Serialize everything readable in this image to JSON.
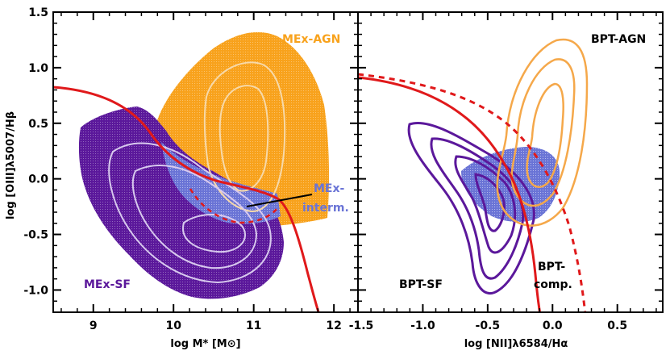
{
  "chart_data": [
    {
      "type": "scatter",
      "xlabel": "log M* [M⊙]",
      "ylabel": "log [OIII]λ5007/Hβ",
      "xlim": [
        8.5,
        12.3
      ],
      "ylim": [
        -1.2,
        1.5
      ],
      "x_ticks": [
        "9",
        "10",
        "11",
        "12"
      ],
      "y_ticks": [
        "-1.0",
        "-0.5",
        "0.0",
        "0.5",
        "1.0",
        "1.5"
      ],
      "annotations": [
        {
          "text": "MEx-AGN",
          "x": 11.45,
          "y": 1.3,
          "color": "#f8a21c"
        },
        {
          "text": "MEx-",
          "x": 11.75,
          "y": -0.17,
          "color": "#6a74d6"
        },
        {
          "text": "interm.",
          "x": 11.75,
          "y": -0.34,
          "color": "#6a74d6"
        },
        {
          "text": "MEx-SF",
          "x": 8.95,
          "y": -1.0,
          "color": "#5b189b"
        }
      ],
      "series": [
        {
          "name": "MEx-AGN",
          "color": "#f8a21c",
          "points": [
            [
              10.3,
              1.1
            ],
            [
              10.5,
              1.2
            ],
            [
              10.7,
              1.15
            ],
            [
              10.9,
              1.25
            ],
            [
              11.1,
              1.0
            ],
            [
              10.4,
              0.8
            ],
            [
              10.6,
              0.6
            ],
            [
              10.9,
              0.7
            ],
            [
              11.1,
              0.5
            ],
            [
              10.3,
              0.3
            ],
            [
              10.5,
              0.2
            ],
            [
              10.8,
              0.3
            ],
            [
              11.0,
              0.0
            ],
            [
              11.2,
              -0.1
            ],
            [
              10.6,
              -0.05
            ],
            [
              10.4,
              0.45
            ],
            [
              11.3,
              0.6
            ],
            [
              11.25,
              0.2
            ],
            [
              10.2,
              0.55
            ],
            [
              10.7,
              0.9
            ]
          ]
        },
        {
          "name": "MEx-interm.",
          "color": "#6a74d6",
          "points": [
            [
              10.1,
              -0.05
            ],
            [
              10.3,
              -0.1
            ],
            [
              10.5,
              -0.15
            ],
            [
              10.7,
              -0.2
            ],
            [
              10.9,
              -0.25
            ],
            [
              11.0,
              -0.3
            ],
            [
              10.4,
              -0.25
            ],
            [
              10.8,
              -0.35
            ],
            [
              11.1,
              -0.2
            ],
            [
              10.6,
              -0.3
            ]
          ]
        },
        {
          "name": "MEx-SF",
          "color": "#5b189b",
          "points": [
            [
              9.2,
              0.3
            ],
            [
              9.5,
              0.1
            ],
            [
              9.7,
              -0.1
            ],
            [
              9.9,
              -0.3
            ],
            [
              10.1,
              -0.5
            ],
            [
              10.3,
              -0.6
            ],
            [
              10.5,
              -0.5
            ],
            [
              10.7,
              -0.7
            ],
            [
              10.9,
              -0.55
            ],
            [
              11.1,
              -0.5
            ],
            [
              9.6,
              0.45
            ],
            [
              9.8,
              0.3
            ],
            [
              10.0,
              0.2
            ],
            [
              10.2,
              -0.8
            ],
            [
              10.4,
              -0.9
            ],
            [
              10.0,
              -0.7
            ],
            [
              9.4,
              -0.2
            ],
            [
              9.1,
              0.15
            ],
            [
              11.2,
              -0.7
            ],
            [
              10.8,
              -0.95
            ]
          ]
        }
      ],
      "demarcation_line": {
        "color": "#e0191b"
      }
    },
    {
      "type": "scatter",
      "xlabel": "log [NII]λ6584/Hα",
      "ylabel": "",
      "xlim": [
        -1.5,
        0.85
      ],
      "ylim": [
        -1.2,
        1.5
      ],
      "x_ticks": [
        "-1.5",
        "-1.0",
        "-0.5",
        "0.0",
        "0.5"
      ],
      "annotations": [
        {
          "text": "BPT-AGN",
          "x": 0.35,
          "y": 1.3,
          "color": "#000000"
        },
        {
          "text": "BPT-SF",
          "x": -1.2,
          "y": -1.0,
          "color": "#000000"
        },
        {
          "text": "BPT-",
          "x": -0.2,
          "y": -0.7,
          "color": "#000000"
        },
        {
          "text": "comp.",
          "x": -0.2,
          "y": -0.87,
          "color": "#000000"
        }
      ],
      "series": [
        {
          "name": "MEx-interm.",
          "color": "#6a74d6",
          "points": [
            [
              -0.45,
              -0.1
            ],
            [
              -0.35,
              0.0
            ],
            [
              -0.3,
              -0.2
            ],
            [
              -0.2,
              0.05
            ],
            [
              -0.15,
              -0.25
            ],
            [
              -0.1,
              0.1
            ],
            [
              -0.05,
              -0.15
            ],
            [
              0.0,
              -0.3
            ],
            [
              0.05,
              0.0
            ],
            [
              0.1,
              -0.2
            ],
            [
              -0.4,
              -0.25
            ],
            [
              -0.25,
              -0.35
            ],
            [
              -0.5,
              0.05
            ],
            [
              0.08,
              -0.35
            ],
            [
              -0.15,
              0.15
            ]
          ]
        }
      ],
      "demarcation_lines": [
        {
          "style": "solid",
          "color": "#e0191b"
        },
        {
          "style": "dashed",
          "color": "#e0191b"
        }
      ]
    }
  ]
}
